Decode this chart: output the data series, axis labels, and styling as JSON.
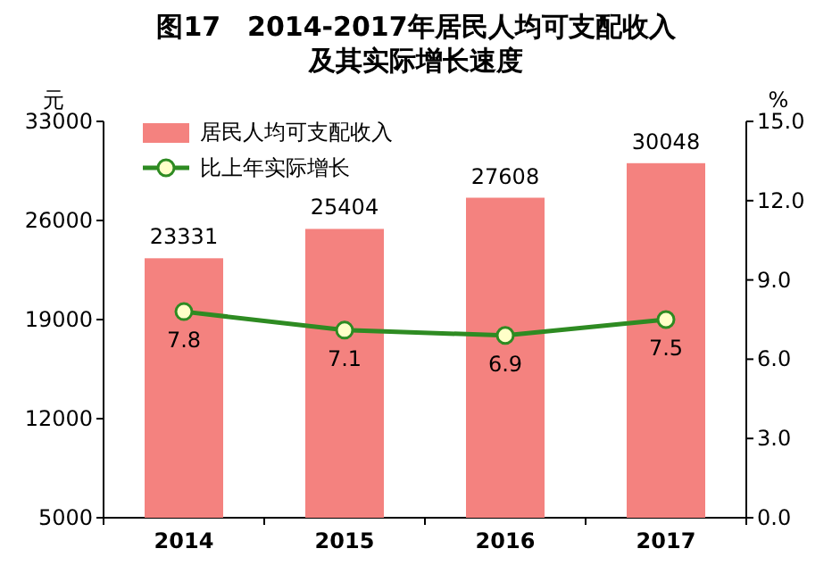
{
  "chart_data": {
    "type": "bar",
    "title": "图17　2014-2017年居民人均可支配收入",
    "subtitle": "及其实际增长速度",
    "ylabel": "元",
    "y2label": "%",
    "categories": [
      "2014",
      "2015",
      "2016",
      "2017"
    ],
    "series": [
      {
        "name": "居民人均可支配收入",
        "color": "#f4827f",
        "values": [
          23331,
          25404,
          27608,
          30048
        ]
      },
      {
        "name": "比上年实际增长",
        "type": "line",
        "axis": "y2",
        "color": "#2e8b22",
        "values": [
          7.8,
          7.1,
          6.9,
          7.5
        ]
      }
    ],
    "ylim": [
      5000,
      33000
    ],
    "yticks": [
      5000,
      12000,
      19000,
      26000,
      33000
    ],
    "y2lim": [
      0,
      15
    ],
    "y2ticks": [
      {
        "value": 0,
        "label": "0.0"
      },
      {
        "value": 3,
        "label": "3.0"
      },
      {
        "value": 6,
        "label": "6.0"
      },
      {
        "value": 9,
        "label": "9.0"
      },
      {
        "value": 12,
        "label": "12.0"
      },
      {
        "value": 15,
        "label": "15.0"
      }
    ],
    "marker": "circle",
    "data_labels": true,
    "legend": "top left"
  }
}
